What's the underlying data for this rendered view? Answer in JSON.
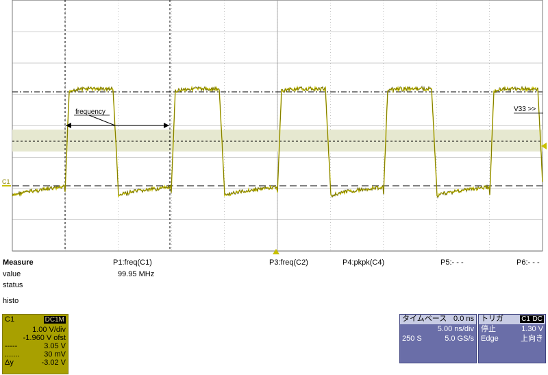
{
  "screen": {
    "trace_color": "#c8c000",
    "grid_color": "#9a9a9a",
    "band_color": "#e6e8d0",
    "cursor_label": "frequency",
    "v33_label": "V33 >>",
    "channel_marker": "C1"
  },
  "measure": {
    "title": "Measure",
    "row_value": "value",
    "row_status": "status",
    "row_histo": "histo",
    "p1": "P1:freq(C1)",
    "p1_value": "99.95 MHz",
    "p3": "P3:freq(C2)",
    "p4": "P4:pkpk(C4)",
    "p5": "P5:- - -",
    "p6": "P6:- - -"
  },
  "c1": {
    "name": "C1",
    "coupling": "DC1M",
    "vdiv": "1.00 V/div",
    "offset": "-1.960 V ofst",
    "cursor1_symbol": "-----",
    "cursor1_value": "3.05 V",
    "cursor2_symbol": ".......",
    "cursor2_value": "30 mV",
    "dy_label": "Δy",
    "dy_value": "-3.02 V"
  },
  "timebase": {
    "title": "タイムベース",
    "delay": "0.0 ns",
    "tdiv": "5.00 ns/div",
    "samples": "250 S",
    "rate": "5.0 GS/s"
  },
  "trigger": {
    "title": "トリガ",
    "chip_channel": "C1",
    "chip_coupling": "DC",
    "mode": "停止",
    "level": "1.30 V",
    "type": "Edge",
    "slope": "上向き"
  }
}
